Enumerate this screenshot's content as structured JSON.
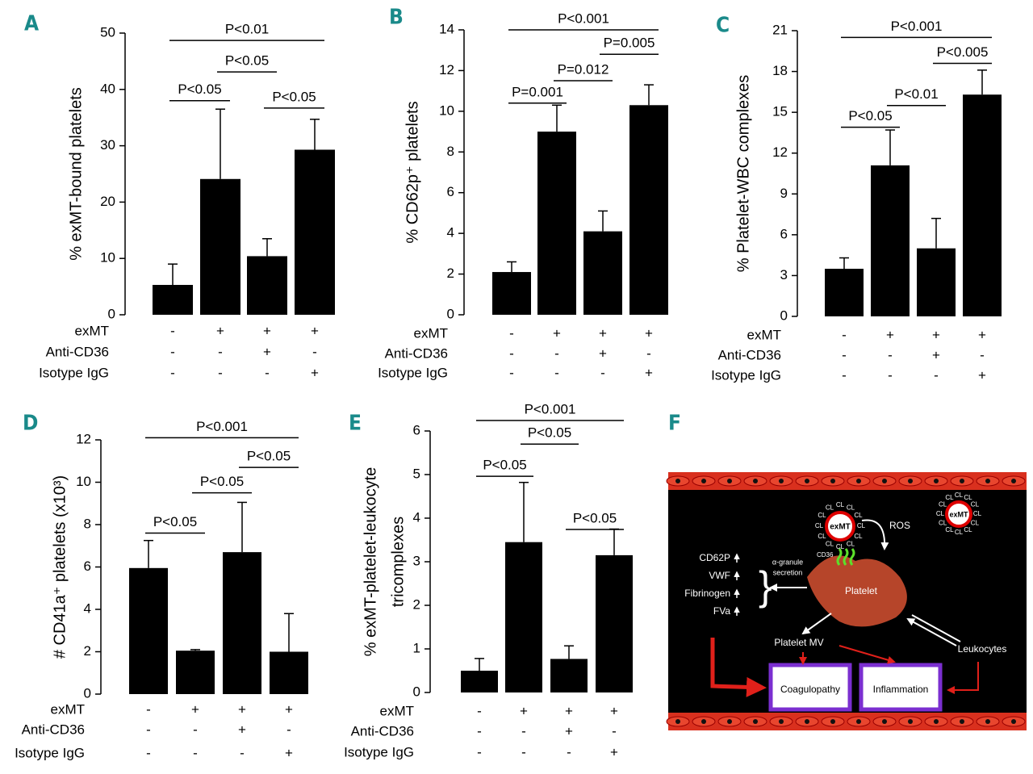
{
  "chart_data": [
    {
      "type": "bar",
      "panel": "A",
      "ylabel": "% exMT-bound platelets",
      "categories": [
        null,
        null,
        null,
        null
      ],
      "values": [
        5.3,
        24.1,
        10.4,
        29.3
      ],
      "errors": [
        3.7,
        12.4,
        3.1,
        5.4
      ],
      "color": "#000000",
      "ylim": [
        0,
        50
      ],
      "yticks": [
        0,
        10,
        20,
        30,
        40,
        50
      ],
      "conditions": [
        {
          "name": "exMT",
          "signs": [
            "-",
            "+",
            "+",
            "+"
          ]
        },
        {
          "name": "Anti-CD36",
          "signs": [
            "-",
            "-",
            "+",
            "-"
          ]
        },
        {
          "name": "Isotype IgG",
          "signs": [
            "-",
            "-",
            "-",
            "+"
          ]
        }
      ],
      "annotations": [
        {
          "text": "P<0.05",
          "from": 0,
          "to": 1,
          "y": 38
        },
        {
          "text": "P<0.05",
          "from": 2,
          "to": 3,
          "y": 36.7
        },
        {
          "text": "P<0.05",
          "from": 1,
          "to": 2,
          "y": 43.1
        },
        {
          "text": "P<0.01",
          "from": 0,
          "to": 3,
          "y": 48.7
        }
      ]
    },
    {
      "type": "bar",
      "panel": "B",
      "ylabel": "% CD62p⁺ platelets",
      "categories": [
        null,
        null,
        null,
        null
      ],
      "values": [
        2.1,
        9.0,
        4.1,
        10.3
      ],
      "errors": [
        0.5,
        1.3,
        1.0,
        1.0
      ],
      "color": "#000000",
      "ylim": [
        0,
        14
      ],
      "yticks": [
        0,
        2,
        4,
        6,
        8,
        10,
        12,
        14
      ],
      "conditions": [
        {
          "name": "exMT",
          "signs": [
            "-",
            "+",
            "+",
            "+"
          ]
        },
        {
          "name": "Anti-CD36",
          "signs": [
            "-",
            "-",
            "+",
            "-"
          ]
        },
        {
          "name": "Isotype IgG",
          "signs": [
            "-",
            "-",
            "-",
            "+"
          ]
        }
      ],
      "annotations": [
        {
          "text": "P=0.001",
          "from": 0,
          "to": 1,
          "y": 10.4
        },
        {
          "text": "P=0.012",
          "from": 1,
          "to": 2,
          "y": 11.5
        },
        {
          "text": "P=0.005",
          "from": 2,
          "to": 3,
          "y": 12.8
        },
        {
          "text": "P<0.001",
          "from": 0,
          "to": 3,
          "y": 14.0
        }
      ]
    },
    {
      "type": "bar",
      "panel": "C",
      "ylabel": "% Platelet-WBC complexes",
      "categories": [
        null,
        null,
        null,
        null
      ],
      "values": [
        3.5,
        11.1,
        5.0,
        16.3
      ],
      "errors": [
        0.8,
        2.6,
        2.2,
        1.8
      ],
      "color": "#000000",
      "ylim": [
        0,
        21
      ],
      "yticks": [
        0,
        3,
        6,
        9,
        12,
        15,
        18,
        21
      ],
      "conditions": [
        {
          "name": "exMT",
          "signs": [
            "-",
            "+",
            "+",
            "+"
          ]
        },
        {
          "name": "Anti-CD36",
          "signs": [
            "-",
            "-",
            "+",
            "-"
          ]
        },
        {
          "name": "Isotype IgG",
          "signs": [
            "-",
            "-",
            "-",
            "+"
          ]
        }
      ],
      "annotations": [
        {
          "text": "P<0.05",
          "from": 0,
          "to": 1,
          "y": 13.9
        },
        {
          "text": "P<0.01",
          "from": 1,
          "to": 2,
          "y": 15.5
        },
        {
          "text": "P<0.005",
          "from": 2,
          "to": 3,
          "y": 18.6
        },
        {
          "text": "P<0.001",
          "from": 0,
          "to": 3,
          "y": 20.5
        }
      ]
    },
    {
      "type": "bar",
      "panel": "D",
      "ylabel": "# CD41a⁺ platelets (x10³)",
      "categories": [
        null,
        null,
        null,
        null
      ],
      "values": [
        5.95,
        2.05,
        6.7,
        2.0
      ],
      "errors": [
        1.3,
        0.05,
        2.35,
        1.8
      ],
      "color": "#000000",
      "ylim": [
        0,
        12
      ],
      "yticks": [
        0,
        2,
        4,
        6,
        8,
        10,
        12
      ],
      "conditions": [
        {
          "name": "exMT",
          "signs": [
            "-",
            "+",
            "+",
            "+"
          ]
        },
        {
          "name": "Anti-CD36",
          "signs": [
            "-",
            "-",
            "+",
            "-"
          ]
        },
        {
          "name": "Isotype IgG",
          "signs": [
            "-",
            "-",
            "-",
            "+"
          ]
        }
      ],
      "annotations": [
        {
          "text": "P<0.05",
          "from": 0,
          "to": 1,
          "y": 7.6
        },
        {
          "text": "P<0.05",
          "from": 1,
          "to": 2,
          "y": 9.5
        },
        {
          "text": "P<0.05",
          "from": 2,
          "to": 3,
          "y": 10.7
        },
        {
          "text": "P<0.001",
          "from": 0,
          "to": 3,
          "y": 12.1
        }
      ]
    },
    {
      "type": "bar",
      "panel": "E",
      "ylabel": [
        "% exMT-platelet-leukocyte",
        "tricomplexes"
      ],
      "categories": [
        null,
        null,
        null,
        null
      ],
      "values": [
        0.5,
        3.45,
        0.77,
        3.15
      ],
      "errors": [
        0.28,
        1.37,
        0.3,
        0.6
      ],
      "color": "#000000",
      "ylim": [
        0,
        6
      ],
      "yticks": [
        0,
        1,
        2,
        3,
        4,
        5,
        6
      ],
      "conditions": [
        {
          "name": "exMT",
          "signs": [
            "-",
            "+",
            "+",
            "+"
          ]
        },
        {
          "name": "Anti-CD36",
          "signs": [
            "-",
            "-",
            "+",
            "-"
          ]
        },
        {
          "name": "Isotype IgG",
          "signs": [
            "-",
            "-",
            "-",
            "+"
          ]
        }
      ],
      "annotations": [
        {
          "text": "P<0.05",
          "from": 0,
          "to": 1,
          "y": 4.96
        },
        {
          "text": "P<0.05",
          "from": 2,
          "to": 3,
          "y": 3.74
        },
        {
          "text": "P<0.05",
          "from": 1,
          "to": 2,
          "y": 5.7
        },
        {
          "text": "P<0.001",
          "from": 0,
          "to": 3,
          "y": 6.24
        }
      ]
    }
  ],
  "diagram": {
    "panel": "F",
    "exmt": "exMT",
    "cl": "CL",
    "ros": "ROS",
    "cd36": "CD36",
    "granule": [
      "CD62P",
      "VWF",
      "Fibrinogen",
      "FVa"
    ],
    "secretion": [
      "α-granule",
      "secretion"
    ],
    "platelet": "Platelet",
    "mv": "Platelet MV",
    "leukocytes": "Leukocytes",
    "coagulopathy": "Coagulopathy",
    "inflammation": "Inflammation"
  }
}
